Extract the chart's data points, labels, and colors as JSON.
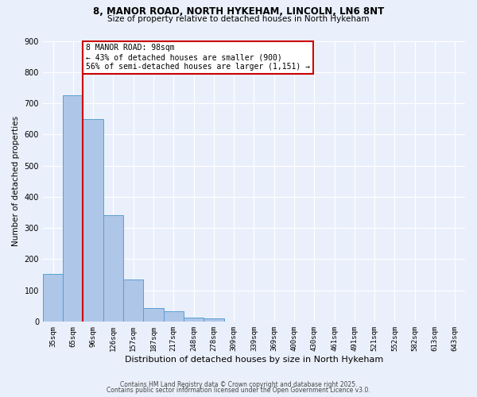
{
  "title1": "8, MANOR ROAD, NORTH HYKEHAM, LINCOLN, LN6 8NT",
  "title2": "Size of property relative to detached houses in North Hykeham",
  "xlabel": "Distribution of detached houses by size in North Hykeham",
  "ylabel": "Number of detached properties",
  "footnote1": "Contains HM Land Registry data © Crown copyright and database right 2025.",
  "footnote2": "Contains public sector information licensed under the Open Government Licence v3.0.",
  "bar_labels": [
    "35sqm",
    "65sqm",
    "96sqm",
    "126sqm",
    "157sqm",
    "187sqm",
    "217sqm",
    "248sqm",
    "278sqm",
    "309sqm",
    "339sqm",
    "369sqm",
    "400sqm",
    "430sqm",
    "461sqm",
    "491sqm",
    "521sqm",
    "552sqm",
    "582sqm",
    "613sqm",
    "643sqm"
  ],
  "bar_values": [
    152,
    725,
    648,
    342,
    135,
    43,
    32,
    13,
    9,
    0,
    0,
    0,
    0,
    0,
    0,
    0,
    0,
    0,
    0,
    0,
    0
  ],
  "bar_color": "#aec6e8",
  "bar_edge_color": "#5a9fd4",
  "property_line_x": 1.5,
  "annotation_text": "8 MANOR ROAD: 98sqm\n← 43% of detached houses are smaller (900)\n56% of semi-detached houses are larger (1,151) →",
  "annotation_box_color": "#ffffff",
  "annotation_box_edge": "#cc0000",
  "red_line_color": "#cc0000",
  "background_color": "#eaf0fb",
  "grid_color": "#ffffff",
  "ylim": [
    0,
    900
  ],
  "yticks": [
    0,
    100,
    200,
    300,
    400,
    500,
    600,
    700,
    800,
    900
  ]
}
